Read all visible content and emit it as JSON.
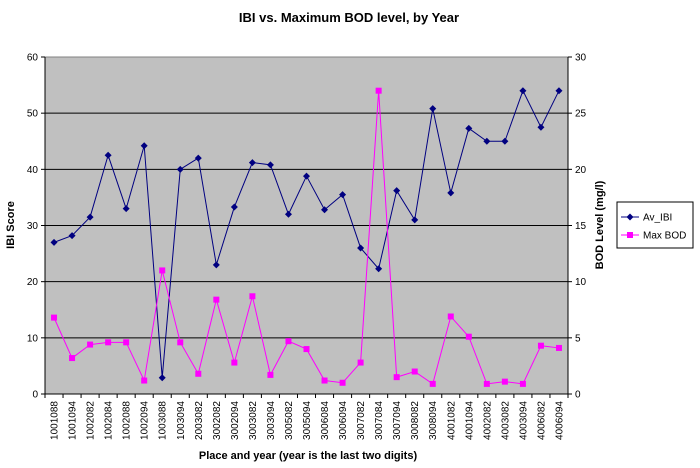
{
  "chart_data": {
    "type": "line",
    "title": "IBI vs. Maximum BOD level, by Year",
    "xlabel": "Place and year (year is the last two digits)",
    "ylabel_left": "IBI Score",
    "ylabel_right": "BOD Level (mg/l)",
    "ylim_left": [
      0,
      60
    ],
    "ylim_right": [
      0,
      30
    ],
    "yticks_left": [
      "0",
      "10",
      "20",
      "30",
      "40",
      "50",
      "60"
    ],
    "yticks_right": [
      "0",
      "5",
      "10",
      "15",
      "20",
      "25",
      "30"
    ],
    "grid": true,
    "legend_position": "right",
    "plot_background": "#C0C0C0",
    "categories": [
      "1001088",
      "1001094",
      "1002082",
      "1002084",
      "1002088",
      "1002094",
      "1003088",
      "1003094",
      "2003082",
      "3002082",
      "3002094",
      "3003082",
      "3003094",
      "3005082",
      "3005094",
      "3006084",
      "3006094",
      "3007082",
      "3007084",
      "3007094",
      "3008082",
      "3008094",
      "4001082",
      "4001094",
      "4002082",
      "4003082",
      "4003094",
      "4006082",
      "4006094"
    ],
    "series": [
      {
        "name": "Av_IBI",
        "axis": "left",
        "color": "#000080",
        "marker": "diamond",
        "values": [
          27.0,
          28.2,
          31.5,
          42.5,
          33.0,
          44.2,
          2.9,
          40.0,
          42.0,
          23.0,
          33.3,
          41.2,
          40.8,
          32.0,
          38.8,
          32.8,
          35.5,
          26.0,
          22.3,
          36.2,
          31.0,
          50.8,
          35.8,
          47.3,
          45.0,
          45.0,
          54.0,
          47.5,
          54.0
        ]
      },
      {
        "name": "Max BOD",
        "axis": "right",
        "color": "#FF00FF",
        "marker": "square",
        "values": [
          6.8,
          3.2,
          4.4,
          4.6,
          4.6,
          1.2,
          11.0,
          4.6,
          1.8,
          8.4,
          2.8,
          8.7,
          1.7,
          4.7,
          4.0,
          1.2,
          1.0,
          2.8,
          27.0,
          1.5,
          2.0,
          0.9,
          6.9,
          5.1,
          0.9,
          1.1,
          0.9,
          4.3,
          4.1
        ]
      }
    ]
  }
}
